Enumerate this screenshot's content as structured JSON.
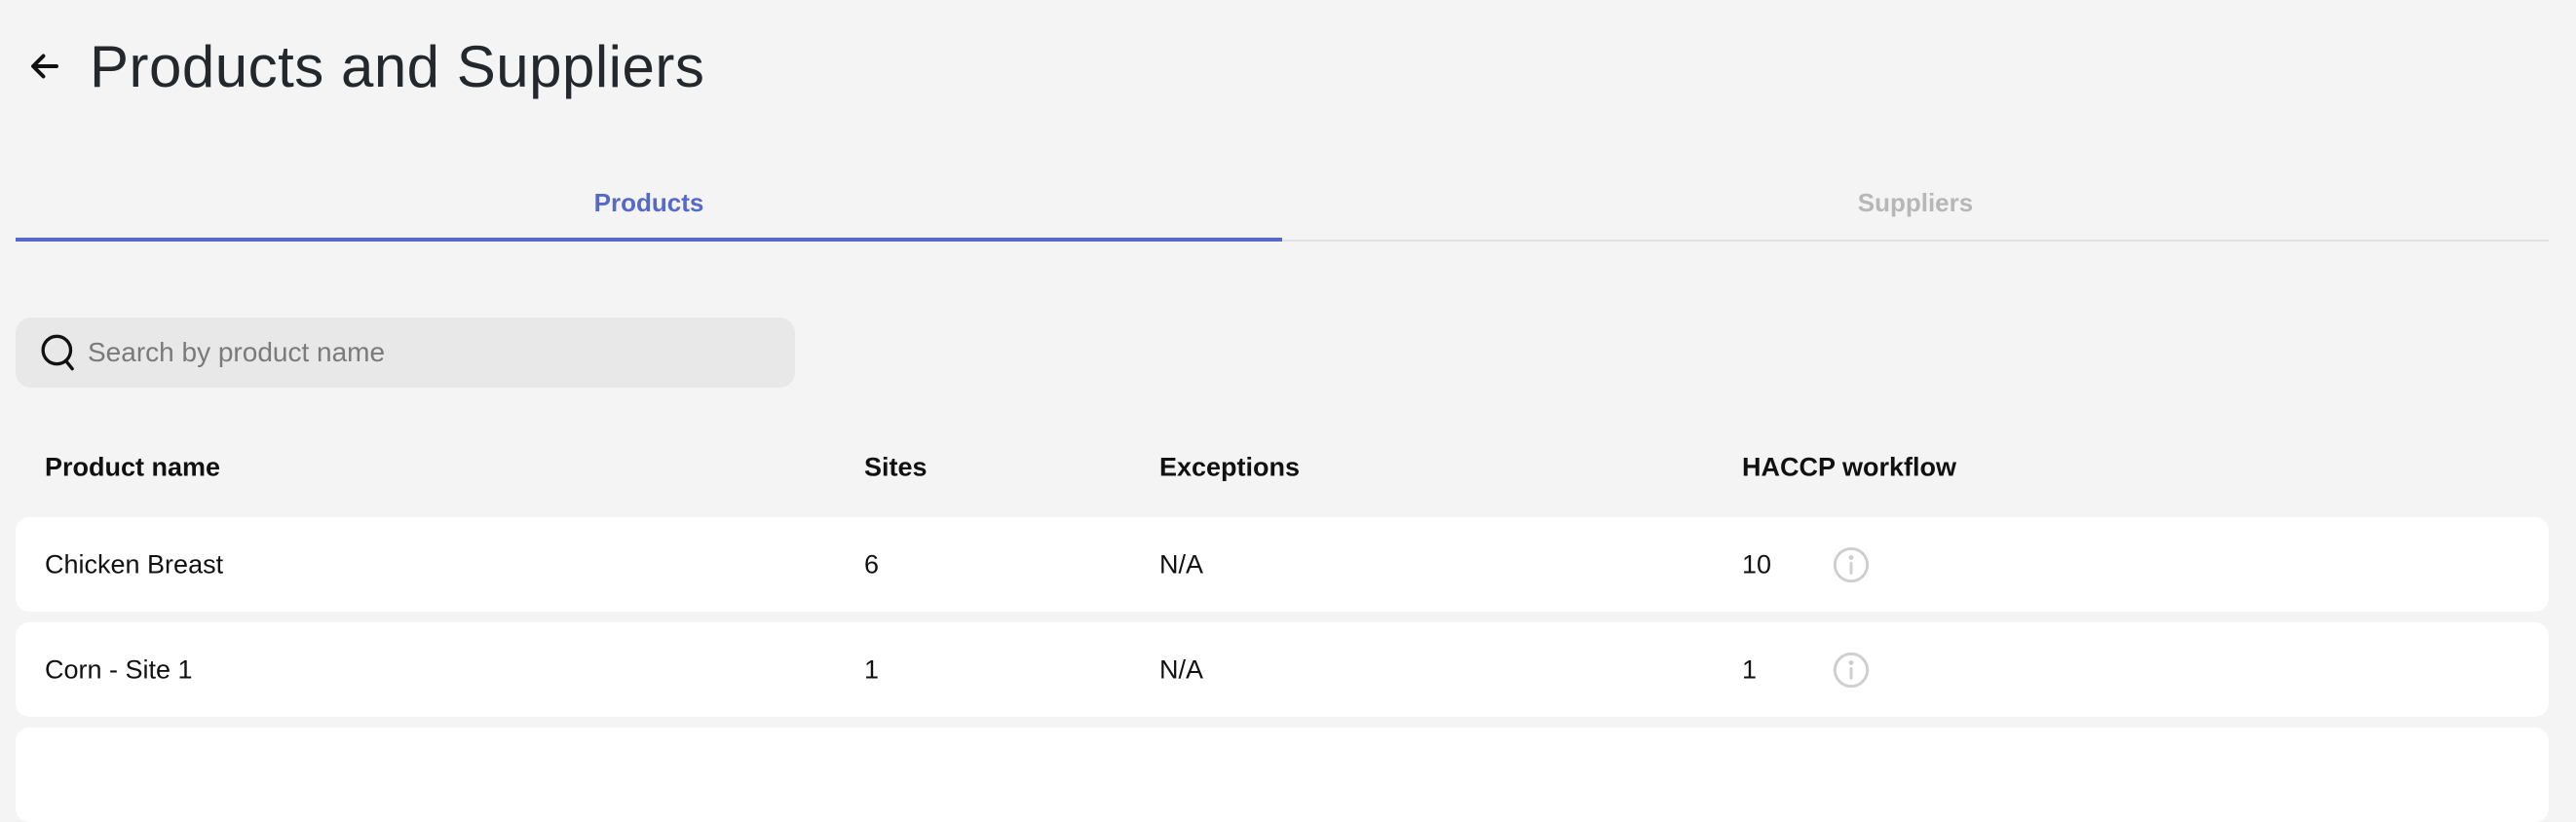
{
  "header": {
    "title": "Products and Suppliers",
    "back_icon": "arrow-left-icon"
  },
  "tabs": [
    {
      "label": "Products",
      "active": true
    },
    {
      "label": "Suppliers",
      "active": false
    }
  ],
  "accent_color": "#5469c9",
  "search": {
    "placeholder": "Search by product name",
    "value": ""
  },
  "table": {
    "columns": [
      "Product name",
      "Sites",
      "Exceptions",
      "HACCP workflow"
    ],
    "rows": [
      {
        "name": "Chicken Breast",
        "sites": "6",
        "exceptions": "N/A",
        "haccp": "10"
      },
      {
        "name": "Corn - Site 1",
        "sites": "1",
        "exceptions": "N/A",
        "haccp": "1"
      }
    ]
  }
}
